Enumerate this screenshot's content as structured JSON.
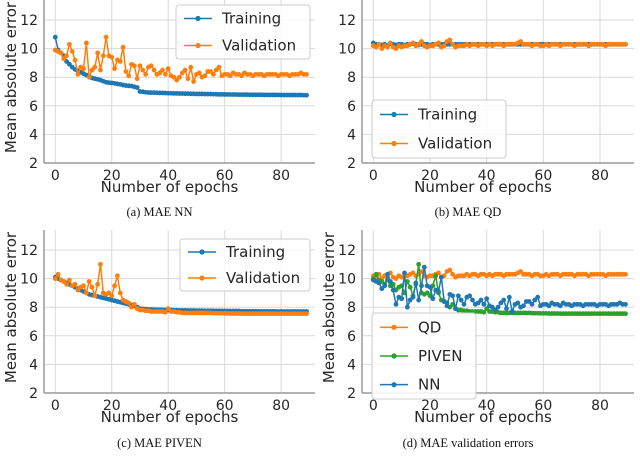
{
  "colors": {
    "Training": "#1f77b4",
    "Validation": "#ff7f0e",
    "QD": "#ff7f0e",
    "PIVEN": "#2ca02c",
    "NN": "#1f77b4",
    "grid": "#d9d9d9",
    "spine": "#999999"
  },
  "chart_data": [
    {
      "type": "line",
      "caption": "(a) MAE NN",
      "xlabel": "Number of epochs",
      "ylabel": "Mean absolute error",
      "xlim": [
        -4,
        92
      ],
      "ylim": [
        2,
        13.4
      ],
      "xticks": [
        0,
        20,
        40,
        60,
        80
      ],
      "yticks": [
        2,
        4,
        6,
        8,
        10,
        12
      ],
      "grid": true,
      "legend": "top-right",
      "series": [
        {
          "name": "Training",
          "values": [
            10.8,
            9.9,
            9.7,
            9.5,
            9.1,
            8.9,
            8.7,
            8.55,
            8.45,
            8.35,
            8.25,
            8.15,
            8.05,
            7.95,
            7.9,
            7.85,
            7.8,
            7.72,
            7.65,
            7.62,
            7.6,
            7.57,
            7.53,
            7.5,
            7.45,
            7.42,
            7.4,
            7.38,
            7.33,
            7.28,
            7.0,
            6.98,
            6.95,
            6.93,
            6.92,
            6.92,
            6.91,
            6.9,
            6.9,
            6.89,
            6.88,
            6.88,
            6.87,
            6.87,
            6.86,
            6.86,
            6.85,
            6.85,
            6.84,
            6.84,
            6.83,
            6.83,
            6.83,
            6.82,
            6.82,
            6.82,
            6.81,
            6.81,
            6.8,
            6.8,
            6.8,
            6.8,
            6.79,
            6.79,
            6.79,
            6.78,
            6.78,
            6.78,
            6.78,
            6.77,
            6.77,
            6.77,
            6.77,
            6.77,
            6.76,
            6.76,
            6.76,
            6.76,
            6.76,
            6.76,
            6.75,
            6.75,
            6.75,
            6.75,
            6.75,
            6.75,
            6.75,
            6.75,
            6.74,
            6.74
          ]
        },
        {
          "name": "Validation",
          "values": [
            9.9,
            9.8,
            9.7,
            9.3,
            9.5,
            10.3,
            9.8,
            9.2,
            8.2,
            8.7,
            8.6,
            10.4,
            8.0,
            8.5,
            8.7,
            9.7,
            8.5,
            9.5,
            10.8,
            9.5,
            9.4,
            8.6,
            9.2,
            9.1,
            10.1,
            8.4,
            8.1,
            8.9,
            8.8,
            7.9,
            8.8,
            8.5,
            8.2,
            8.7,
            8.8,
            8.5,
            8.2,
            8.3,
            8.5,
            8.2,
            8.6,
            8.1,
            8.0,
            7.8,
            8.0,
            8.3,
            8.5,
            7.9,
            8.7,
            7.7,
            8.2,
            8.3,
            8.0,
            8.1,
            8.4,
            8.4,
            8.2,
            8.5,
            8.7,
            8.1,
            8.2,
            8.2,
            8.1,
            8.3,
            8.2,
            8.2,
            8.1,
            8.3,
            8.2,
            8.2,
            8.1,
            8.2,
            8.2,
            8.2,
            8.1,
            8.2,
            8.2,
            8.2,
            8.2,
            8.1,
            8.2,
            8.2,
            8.2,
            8.1,
            8.2,
            8.2,
            8.2,
            8.3,
            8.2,
            8.2
          ]
        }
      ]
    },
    {
      "type": "line",
      "caption": "(b) MAE QD",
      "xlabel": "Number of epochs",
      "ylabel": "",
      "xlim": [
        -4,
        92
      ],
      "ylim": [
        2,
        13.4
      ],
      "xticks": [
        0,
        20,
        40,
        60,
        80
      ],
      "yticks": [
        2,
        4,
        6,
        8,
        10,
        12
      ],
      "grid": true,
      "legend": "lower-left",
      "series": [
        {
          "name": "Training",
          "values": [
            10.4,
            10.3,
            10.3,
            10.25,
            10.3,
            10.2,
            10.35,
            10.3,
            10.25,
            10.3,
            10.3,
            10.25,
            10.3,
            10.3,
            10.35,
            10.3,
            10.25,
            10.3,
            10.3,
            10.3,
            10.25,
            10.3,
            10.3,
            10.3,
            10.3,
            10.3,
            10.3,
            10.3,
            10.3,
            10.3,
            10.3,
            10.3,
            10.3,
            10.3,
            10.3,
            10.3,
            10.3,
            10.3,
            10.3,
            10.3,
            10.3,
            10.3,
            10.3,
            10.3,
            10.3,
            10.3,
            10.3,
            10.3,
            10.3,
            10.3,
            10.3,
            10.3,
            10.3,
            10.3,
            10.3,
            10.3,
            10.3,
            10.3,
            10.3,
            10.3,
            10.3,
            10.3,
            10.3,
            10.3,
            10.3,
            10.3,
            10.3,
            10.3,
            10.3,
            10.3,
            10.3,
            10.3,
            10.3,
            10.3,
            10.3,
            10.3,
            10.3,
            10.3,
            10.3,
            10.3,
            10.3,
            10.3,
            10.3,
            10.3,
            10.3,
            10.3,
            10.3,
            10.3,
            10.3,
            10.3
          ]
        },
        {
          "name": "Validation",
          "values": [
            10.2,
            10.1,
            10.3,
            10.0,
            10.2,
            10.1,
            10.4,
            10.1,
            10.0,
            10.2,
            10.1,
            10.2,
            10.2,
            10.3,
            10.4,
            10.2,
            10.3,
            10.5,
            10.2,
            10.1,
            10.2,
            10.2,
            10.3,
            10.4,
            10.1,
            10.2,
            10.5,
            10.6,
            10.3,
            10.1,
            10.2,
            10.2,
            10.2,
            10.3,
            10.2,
            10.3,
            10.3,
            10.2,
            10.3,
            10.3,
            10.2,
            10.3,
            10.2,
            10.3,
            10.3,
            10.3,
            10.2,
            10.3,
            10.3,
            10.3,
            10.3,
            10.4,
            10.5,
            10.3,
            10.3,
            10.3,
            10.2,
            10.3,
            10.3,
            10.2,
            10.2,
            10.3,
            10.2,
            10.3,
            10.3,
            10.3,
            10.2,
            10.3,
            10.3,
            10.3,
            10.3,
            10.2,
            10.3,
            10.3,
            10.3,
            10.3,
            10.2,
            10.3,
            10.3,
            10.3,
            10.3,
            10.3,
            10.2,
            10.3,
            10.3,
            10.3,
            10.3,
            10.3,
            10.3,
            10.3
          ]
        }
      ]
    },
    {
      "type": "line",
      "caption": "(c) MAE PIVEN",
      "xlabel": "Number of epochs",
      "ylabel": "Mean absolute error",
      "xlim": [
        -4,
        92
      ],
      "ylim": [
        2,
        13.4
      ],
      "xticks": [
        0,
        20,
        40,
        60,
        80
      ],
      "yticks": [
        2,
        4,
        6,
        8,
        10,
        12
      ],
      "grid": true,
      "legend": "top-right",
      "series": [
        {
          "name": "Training",
          "values": [
            10.1,
            10.0,
            9.9,
            9.8,
            9.7,
            9.6,
            9.5,
            9.4,
            9.3,
            9.2,
            9.1,
            9.0,
            8.9,
            8.85,
            8.8,
            8.75,
            8.7,
            8.65,
            8.6,
            8.55,
            8.5,
            8.45,
            8.4,
            8.35,
            8.3,
            8.25,
            8.2,
            8.15,
            8.1,
            8.0,
            7.9,
            7.88,
            7.86,
            7.85,
            7.84,
            7.83,
            7.82,
            7.82,
            7.81,
            7.8,
            7.8,
            7.8,
            7.79,
            7.79,
            7.78,
            7.78,
            7.78,
            7.77,
            7.77,
            7.77,
            7.76,
            7.76,
            7.76,
            7.75,
            7.75,
            7.75,
            7.75,
            7.74,
            7.74,
            7.74,
            7.74,
            7.73,
            7.73,
            7.73,
            7.73,
            7.73,
            7.72,
            7.72,
            7.72,
            7.72,
            7.72,
            7.72,
            7.71,
            7.71,
            7.71,
            7.71,
            7.71,
            7.71,
            7.71,
            7.7,
            7.7,
            7.7,
            7.7,
            7.7,
            7.7,
            7.7,
            7.7,
            7.7,
            7.7,
            7.7
          ]
        },
        {
          "name": "Validation",
          "values": [
            10.0,
            10.3,
            9.9,
            9.8,
            9.6,
            9.9,
            9.5,
            9.6,
            9.2,
            9.4,
            9.5,
            9.0,
            9.8,
            9.4,
            8.8,
            9.6,
            11.0,
            9.0,
            8.9,
            9.0,
            8.8,
            9.5,
            10.2,
            9.0,
            8.5,
            8.4,
            8.3,
            8.0,
            8.2,
            7.9,
            7.8,
            7.8,
            7.75,
            7.75,
            7.7,
            7.7,
            7.7,
            7.7,
            7.7,
            7.65,
            7.9,
            7.7,
            7.7,
            7.65,
            7.65,
            7.6,
            7.6,
            7.6,
            7.6,
            7.6,
            7.6,
            7.6,
            7.6,
            7.6,
            7.6,
            7.6,
            7.58,
            7.58,
            7.58,
            7.57,
            7.57,
            7.57,
            7.56,
            7.56,
            7.56,
            7.56,
            7.55,
            7.55,
            7.55,
            7.55,
            7.55,
            7.55,
            7.55,
            7.55,
            7.55,
            7.55,
            7.55,
            7.55,
            7.55,
            7.55,
            7.55,
            7.55,
            7.55,
            7.55,
            7.55,
            7.55,
            7.55,
            7.55,
            7.55,
            7.55
          ]
        }
      ]
    },
    {
      "type": "line",
      "caption": "(d) MAE validation errors",
      "xlabel": "Number of epochs",
      "ylabel": "Mean absolute error",
      "xlim": [
        -4,
        92
      ],
      "ylim": [
        2,
        13.4
      ],
      "xticks": [
        0,
        20,
        40,
        60,
        80
      ],
      "yticks": [
        2,
        4,
        6,
        8,
        10,
        12
      ],
      "grid": true,
      "legend": "lower-left",
      "series": [
        {
          "name": "QD",
          "values": [
            10.2,
            10.1,
            10.3,
            10.0,
            10.2,
            10.1,
            10.4,
            10.1,
            10.0,
            10.2,
            10.1,
            10.2,
            10.2,
            10.3,
            10.4,
            10.2,
            10.3,
            10.5,
            10.2,
            10.1,
            10.2,
            10.2,
            10.3,
            10.4,
            10.1,
            10.2,
            10.5,
            10.6,
            10.3,
            10.1,
            10.2,
            10.2,
            10.2,
            10.3,
            10.2,
            10.3,
            10.3,
            10.2,
            10.3,
            10.3,
            10.2,
            10.3,
            10.2,
            10.3,
            10.3,
            10.3,
            10.2,
            10.3,
            10.3,
            10.3,
            10.3,
            10.4,
            10.5,
            10.3,
            10.3,
            10.3,
            10.2,
            10.3,
            10.3,
            10.2,
            10.2,
            10.3,
            10.2,
            10.3,
            10.3,
            10.3,
            10.2,
            10.3,
            10.3,
            10.3,
            10.3,
            10.2,
            10.3,
            10.3,
            10.3,
            10.3,
            10.2,
            10.3,
            10.3,
            10.3,
            10.3,
            10.3,
            10.2,
            10.3,
            10.3,
            10.3,
            10.3,
            10.3,
            10.3,
            10.3
          ]
        },
        {
          "name": "PIVEN",
          "values": [
            10.0,
            10.3,
            9.9,
            9.8,
            9.6,
            9.9,
            9.5,
            9.6,
            9.2,
            9.4,
            9.5,
            9.0,
            9.8,
            9.4,
            8.8,
            9.6,
            11.0,
            9.0,
            8.9,
            9.0,
            8.8,
            9.5,
            10.2,
            9.0,
            8.5,
            8.4,
            8.3,
            8.0,
            8.2,
            7.9,
            7.8,
            7.8,
            7.75,
            7.75,
            7.7,
            7.7,
            7.7,
            7.7,
            7.7,
            7.65,
            7.9,
            7.7,
            7.7,
            7.65,
            7.65,
            7.6,
            7.6,
            7.6,
            7.6,
            7.6,
            7.6,
            7.6,
            7.6,
            7.6,
            7.6,
            7.6,
            7.58,
            7.58,
            7.58,
            7.57,
            7.57,
            7.57,
            7.56,
            7.56,
            7.56,
            7.56,
            7.55,
            7.55,
            7.55,
            7.55,
            7.55,
            7.55,
            7.55,
            7.55,
            7.55,
            7.55,
            7.55,
            7.55,
            7.55,
            7.55,
            7.55,
            7.55,
            7.55,
            7.55,
            7.55,
            7.55,
            7.55,
            7.55,
            7.55,
            7.55
          ]
        },
        {
          "name": "NN",
          "values": [
            9.9,
            9.8,
            9.7,
            9.3,
            9.5,
            10.3,
            9.8,
            9.2,
            8.2,
            8.7,
            8.6,
            10.4,
            8.0,
            8.5,
            8.7,
            9.7,
            8.5,
            9.5,
            10.8,
            9.5,
            9.4,
            8.6,
            9.2,
            9.1,
            10.1,
            8.4,
            8.1,
            8.9,
            8.8,
            7.9,
            8.8,
            8.5,
            8.2,
            8.7,
            8.8,
            8.5,
            8.2,
            8.3,
            8.5,
            8.2,
            8.6,
            8.1,
            8.0,
            7.8,
            8.0,
            8.3,
            8.5,
            7.9,
            8.7,
            7.7,
            8.2,
            8.3,
            8.0,
            8.1,
            8.4,
            8.4,
            8.2,
            8.5,
            8.7,
            8.1,
            8.2,
            8.2,
            8.1,
            8.3,
            8.2,
            8.2,
            8.1,
            8.3,
            8.2,
            8.2,
            8.1,
            8.2,
            8.2,
            8.2,
            8.1,
            8.2,
            8.2,
            8.2,
            8.2,
            8.1,
            8.2,
            8.2,
            8.2,
            8.1,
            8.2,
            8.2,
            8.2,
            8.3,
            8.2,
            8.2
          ]
        }
      ]
    }
  ]
}
